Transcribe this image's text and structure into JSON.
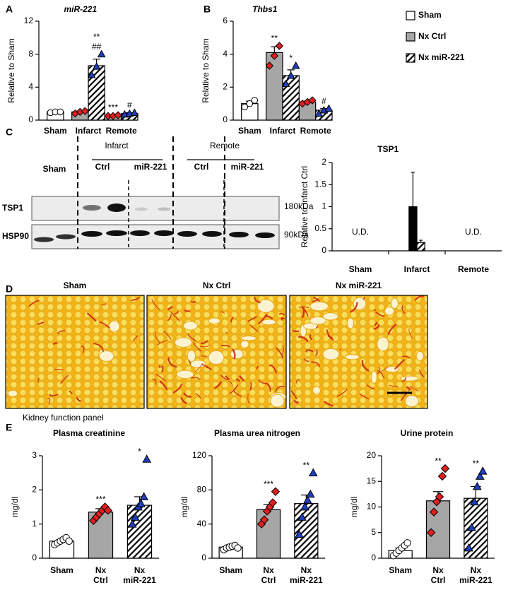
{
  "chart_data": [
    {
      "type": "bar",
      "panel": "A",
      "title": "miR-221",
      "ylabel": "Relative to Sham",
      "categories": [
        "Sham",
        "Infarct",
        "Remote"
      ],
      "ylim": [
        0,
        12
      ],
      "yticks": [
        0,
        4,
        8,
        12
      ],
      "series": [
        {
          "color": "#ffffff",
          "marker": "circle",
          "marker_color": "#ffffff",
          "values": [
            1.0,
            null,
            null
          ],
          "errors": [
            0.05,
            null,
            null
          ],
          "points": [
            [
              0.9,
              1.0,
              1.0
            ],
            null,
            null
          ],
          "sig": [
            null,
            null,
            null
          ]
        },
        {
          "color": "#a6a6a6",
          "marker": "diamond",
          "marker_color": "#e02020",
          "values": [
            null,
            1.0,
            0.5
          ],
          "errors": [
            null,
            0.1,
            0.05
          ],
          "points": [
            null,
            [
              0.8,
              1.0,
              1.1
            ],
            [
              0.5,
              0.5,
              0.6
            ]
          ],
          "sig": [
            null,
            null,
            "***"
          ]
        },
        {
          "pattern": "hatch",
          "marker": "triangle",
          "marker_color": "#1f3fbf",
          "values": [
            null,
            6.6,
            0.8
          ],
          "errors": [
            null,
            0.8,
            0.1
          ],
          "points": [
            null,
            [
              5.5,
              6.5,
              8.0
            ],
            [
              0.7,
              0.8,
              0.9
            ]
          ],
          "sig": [
            null,
            [
              "##",
              "**"
            ],
            "#"
          ]
        }
      ]
    },
    {
      "type": "bar",
      "panel": "B",
      "title": "Thbs1",
      "ylabel": "Relative to Sham",
      "legend": true,
      "categories": [
        "Sham",
        "Infarct",
        "Remote"
      ],
      "ylim": [
        0,
        6
      ],
      "yticks": [
        0,
        2,
        4,
        6
      ],
      "series": [
        {
          "name": "Sham",
          "color": "#ffffff",
          "marker": "circle",
          "marker_color": "#ffffff",
          "values": [
            1.0,
            null,
            null
          ],
          "errors": [
            0.15,
            null,
            null
          ],
          "points": [
            [
              0.8,
              1.0,
              1.2
            ],
            null,
            null
          ],
          "sig": [
            null,
            null,
            null
          ]
        },
        {
          "name": "Nx Ctrl",
          "color": "#a6a6a6",
          "marker": "diamond",
          "marker_color": "#e02020",
          "values": [
            null,
            4.1,
            1.1
          ],
          "errors": [
            null,
            0.35,
            0.05
          ],
          "points": [
            null,
            [
              3.3,
              3.9,
              4.5
            ],
            [
              1.0,
              1.1,
              1.2
            ]
          ],
          "sig": [
            null,
            "**",
            null
          ]
        },
        {
          "name": "Nx miR-221",
          "pattern": "hatch",
          "marker": "triangle",
          "marker_color": "#1f3fbf",
          "values": [
            null,
            2.7,
            0.6
          ],
          "errors": [
            null,
            0.35,
            0.1
          ],
          "points": [
            null,
            [
              2.2,
              2.7,
              3.3
            ],
            [
              0.4,
              0.6,
              0.7
            ]
          ],
          "sig": [
            null,
            "*",
            "#"
          ]
        }
      ]
    },
    {
      "type": "bar",
      "title": "TSP1",
      "ylabel": "Relative to Infarct Ctrl",
      "categories": [
        "Sham",
        "Infarct",
        "Remote"
      ],
      "ylim": [
        0,
        2
      ],
      "yticks": [
        0,
        0.5,
        1,
        1.5,
        2
      ],
      "notes": [
        "U.D.",
        null,
        "U.D."
      ],
      "series": [
        {
          "color": "#000000",
          "values": [
            null,
            1.0,
            null
          ],
          "errors": [
            null,
            0.78,
            null
          ]
        },
        {
          "pattern": "hatch",
          "values": [
            null,
            0.19,
            null
          ],
          "errors": [
            null,
            0.05,
            null
          ]
        }
      ]
    },
    {
      "type": "bar",
      "title": "Plasma creatinine",
      "ylabel": "mg/dl",
      "categories": [
        [
          "Sham"
        ],
        [
          "Nx",
          "Ctrl"
        ],
        [
          "Nx",
          "miR-221"
        ]
      ],
      "ylim": [
        0,
        3
      ],
      "yticks": [
        0,
        1,
        2,
        3
      ],
      "series": [
        {
          "color": "#ffffff",
          "marker": "circle",
          "marker_color": "#ffffff",
          "values": [
            0.5,
            null,
            null
          ],
          "errors": [
            0.04,
            null,
            null
          ],
          "points": [
            [
              0.4,
              0.45,
              0.5,
              0.55,
              0.6,
              0.5
            ],
            null,
            null
          ],
          "sig": [
            null,
            null,
            null
          ]
        },
        {
          "color": "#a6a6a6",
          "marker": "diamond",
          "marker_color": "#e02020",
          "values": [
            null,
            1.35,
            null
          ],
          "errors": [
            null,
            0.1,
            null
          ],
          "points": [
            null,
            [
              1.1,
              1.2,
              1.3,
              1.4,
              1.5,
              1.4
            ],
            null
          ],
          "sig": [
            null,
            "***",
            null
          ]
        },
        {
          "pattern": "hatch",
          "marker": "triangle",
          "marker_color": "#1f3fbf",
          "values": [
            null,
            null,
            1.55
          ],
          "errors": [
            null,
            null,
            0.25
          ],
          "points": [
            null,
            null,
            [
              1.0,
              1.2,
              1.5,
              1.6,
              1.8,
              2.9
            ]
          ],
          "sig": [
            null,
            null,
            "*"
          ]
        }
      ]
    },
    {
      "type": "bar",
      "title": "Plasma urea nitrogen",
      "ylabel": "mg/dl",
      "categories": [
        [
          "Sham"
        ],
        [
          "Nx",
          "Ctrl"
        ],
        [
          "Nx",
          "miR-221"
        ]
      ],
      "ylim": [
        0,
        120
      ],
      "yticks": [
        0,
        40,
        80,
        120
      ],
      "series": [
        {
          "color": "#ffffff",
          "marker": "circle",
          "marker_color": "#ffffff",
          "values": [
            13,
            null,
            null
          ],
          "errors": [
            1,
            null,
            null
          ],
          "points": [
            [
              10,
              12,
              13,
              14,
              15,
              12
            ],
            null,
            null
          ],
          "sig": [
            null,
            null,
            null
          ]
        },
        {
          "color": "#a6a6a6",
          "marker": "diamond",
          "marker_color": "#e02020",
          "values": [
            null,
            57,
            null
          ],
          "errors": [
            null,
            6,
            null
          ],
          "points": [
            null,
            [
              40,
              45,
              55,
              60,
              65,
              78
            ],
            null
          ],
          "sig": [
            null,
            "***",
            null
          ]
        },
        {
          "pattern": "hatch",
          "marker": "triangle",
          "marker_color": "#1f3fbf",
          "values": [
            null,
            null,
            64
          ],
          "errors": [
            null,
            null,
            10
          ],
          "points": [
            null,
            null,
            [
              28,
              48,
              60,
              68,
              75,
              100
            ]
          ],
          "sig": [
            null,
            null,
            "**"
          ]
        }
      ]
    },
    {
      "type": "bar",
      "title": "Urine protein",
      "ylabel": "mg/dl",
      "categories": [
        [
          "Sham"
        ],
        [
          "Nx",
          "Ctrl"
        ],
        [
          "Nx",
          "miR-221"
        ]
      ],
      "ylim": [
        0,
        20
      ],
      "yticks": [
        0,
        5,
        10,
        15,
        20
      ],
      "series": [
        {
          "color": "#ffffff",
          "marker": "circle",
          "marker_color": "#ffffff",
          "values": [
            1.5,
            null,
            null
          ],
          "errors": [
            0.5,
            null,
            null
          ],
          "points": [
            [
              0.5,
              1,
              1.5,
              2,
              2.5,
              3
            ],
            null,
            null
          ],
          "sig": [
            null,
            null,
            null
          ]
        },
        {
          "color": "#a6a6a6",
          "marker": "diamond",
          "marker_color": "#e02020",
          "values": [
            null,
            11.2,
            null
          ],
          "errors": [
            null,
            1.8,
            null
          ],
          "points": [
            null,
            [
              5,
              9,
              11,
              12,
              16,
              17.5
            ],
            null
          ],
          "sig": [
            null,
            "**",
            null
          ]
        },
        {
          "pattern": "hatch",
          "marker": "triangle",
          "marker_color": "#1f3fbf",
          "values": [
            null,
            null,
            11.7
          ],
          "errors": [
            null,
            null,
            2.3
          ],
          "points": [
            null,
            null,
            [
              2,
              6,
              11,
              14,
              16,
              17
            ]
          ],
          "sig": [
            null,
            null,
            "**"
          ]
        }
      ]
    }
  ],
  "blot": {
    "panel": "C",
    "groups": [
      "Infarct",
      "Remote"
    ],
    "lanes": [
      "Sham",
      "Ctrl",
      "miR-221",
      "Ctrl",
      "miR-221"
    ],
    "rows": [
      {
        "name": "TSP1",
        "size": "180kDa"
      },
      {
        "name": "HSP90",
        "size": "90kDa"
      }
    ]
  },
  "histology": {
    "panel": "D",
    "labels": [
      "Sham",
      "Nx Ctrl",
      "Nx miR-221"
    ]
  },
  "kidney": {
    "panel": "E",
    "heading": "Kidney function panel"
  }
}
